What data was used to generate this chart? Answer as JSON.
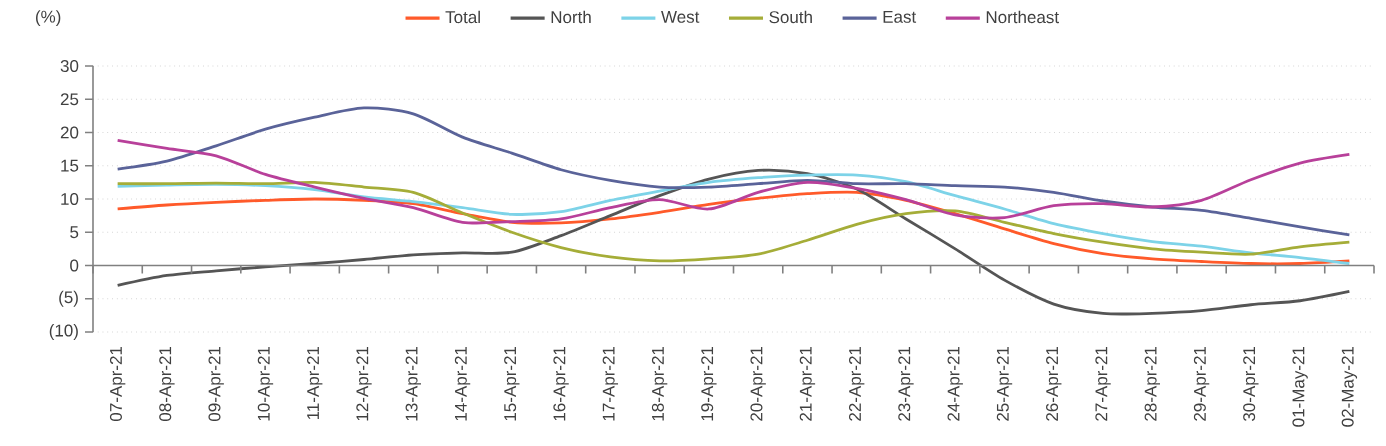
{
  "chart_data": {
    "type": "line",
    "ylabel": "(%)",
    "categories": [
      "07-Apr-21",
      "08-Apr-21",
      "09-Apr-21",
      "10-Apr-21",
      "11-Apr-21",
      "12-Apr-21",
      "13-Apr-21",
      "14-Apr-21",
      "15-Apr-21",
      "16-Apr-21",
      "17-Apr-21",
      "18-Apr-21",
      "19-Apr-21",
      "20-Apr-21",
      "21-Apr-21",
      "22-Apr-21",
      "23-Apr-21",
      "24-Apr-21",
      "25-Apr-21",
      "26-Apr-21",
      "27-Apr-21",
      "28-Apr-21",
      "29-Apr-21",
      "30-Apr-21",
      "01-May-21",
      "02-May-21"
    ],
    "series": [
      {
        "name": "Total",
        "color": "#ff5a2a",
        "values": [
          8.5,
          9.1,
          9.5,
          9.8,
          10.0,
          9.8,
          9.3,
          7.8,
          6.5,
          6.4,
          7.0,
          8.0,
          9.2,
          10.1,
          10.8,
          11.0,
          9.8,
          7.8,
          5.5,
          3.3,
          1.8,
          1.0,
          0.6,
          0.3,
          0.3,
          0.7
        ]
      },
      {
        "name": "North",
        "color": "#555555",
        "values": [
          -3.0,
          -1.5,
          -0.8,
          -0.2,
          0.3,
          0.9,
          1.6,
          1.9,
          2.0,
          4.5,
          7.5,
          10.5,
          13.0,
          14.3,
          13.8,
          11.5,
          7.0,
          2.5,
          -2.2,
          -5.8,
          -7.2,
          -7.2,
          -6.8,
          -5.9,
          -5.3,
          -3.9
        ]
      },
      {
        "name": "West",
        "color": "#7dd3e8",
        "values": [
          11.9,
          12.1,
          12.2,
          12.0,
          11.4,
          10.3,
          9.6,
          8.7,
          7.7,
          8.1,
          9.8,
          11.2,
          12.5,
          13.2,
          13.6,
          13.6,
          12.6,
          10.5,
          8.5,
          6.3,
          4.8,
          3.6,
          2.9,
          1.9,
          1.2,
          0.3
        ]
      },
      {
        "name": "South",
        "color": "#a5ad38",
        "values": [
          12.3,
          12.3,
          12.4,
          12.3,
          12.5,
          11.8,
          11.0,
          7.9,
          5.0,
          2.7,
          1.3,
          0.7,
          1.0,
          1.7,
          3.8,
          6.2,
          7.8,
          8.2,
          6.5,
          4.8,
          3.5,
          2.5,
          2.0,
          1.7,
          2.8,
          3.5
        ]
      },
      {
        "name": "East",
        "color": "#5a6399",
        "values": [
          14.5,
          15.7,
          18.0,
          20.5,
          22.3,
          23.7,
          22.8,
          19.3,
          16.9,
          14.4,
          12.8,
          11.8,
          11.8,
          12.3,
          12.8,
          12.3,
          12.3,
          12.0,
          11.8,
          11.0,
          9.7,
          8.8,
          8.3,
          7.1,
          5.8,
          4.6
        ]
      },
      {
        "name": "Northeast",
        "color": "#b8409a",
        "values": [
          18.8,
          17.6,
          16.5,
          13.7,
          11.8,
          10.1,
          8.7,
          6.5,
          6.6,
          7.0,
          8.7,
          9.9,
          8.5,
          11.0,
          12.5,
          11.6,
          9.9,
          7.6,
          7.2,
          9.0,
          9.3,
          8.8,
          9.8,
          12.9,
          15.4,
          16.7
        ]
      }
    ],
    "ylim": [
      -10,
      30
    ],
    "yticks": [
      {
        "value": -10,
        "label": "(10)"
      },
      {
        "value": -5,
        "label": "(5)"
      },
      0,
      5,
      10,
      15,
      20,
      25,
      30
    ],
    "grid": "y",
    "legend": "top",
    "marker": "none",
    "line_style": "solid"
  }
}
